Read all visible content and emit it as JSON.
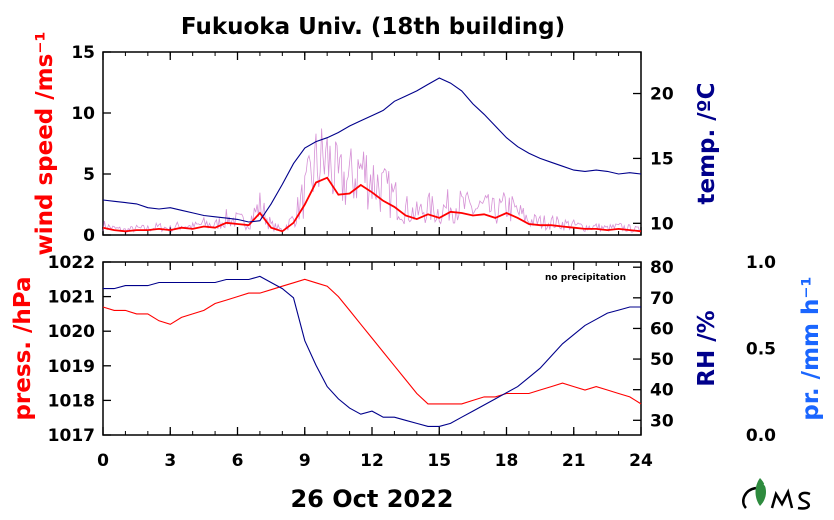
{
  "title": "Fukuoka Univ. (18th building)",
  "date_label": "26 Oct 2022",
  "note": "no precipitation",
  "colors": {
    "wind": "#ff0000",
    "wind_raw": "#cc77cc",
    "temp": "#00008b",
    "press": "#ff0000",
    "rh": "#00008b",
    "precip": "#1a66ff",
    "axis": "#000000"
  },
  "chart_data": [
    {
      "type": "line",
      "panel": "top",
      "xlim": [
        0,
        24
      ],
      "x_ticks": [
        "0",
        "3",
        "6",
        "9",
        "12",
        "15",
        "18",
        "21",
        "24"
      ],
      "left_axis": {
        "label": "wind speed /ms⁻¹",
        "lim": [
          0,
          15
        ],
        "ticks": [
          "0",
          "5",
          "10",
          "15"
        ]
      },
      "right_axis": {
        "label": "temp. /ºC",
        "lim": [
          9.1,
          23.2
        ],
        "ticks": [
          "10",
          "15",
          "20"
        ]
      },
      "series": [
        {
          "axis": "left",
          "x": [
            0,
            0.5,
            1,
            1.5,
            2,
            2.5,
            3,
            3.5,
            4,
            4.5,
            5,
            5.5,
            6,
            6.5,
            7,
            7.5,
            8,
            8.5,
            9,
            9.5,
            10,
            10.5,
            11,
            11.5,
            12,
            12.5,
            13,
            13.5,
            14,
            14.5,
            15,
            15.5,
            16,
            16.5,
            17,
            17.5,
            18,
            18.5,
            19,
            19.5,
            20,
            20.5,
            21,
            21.5,
            22,
            22.5,
            23,
            23.5,
            24
          ],
          "values": [
            0.6,
            0.4,
            0.3,
            0.4,
            0.4,
            0.5,
            0.4,
            0.6,
            0.5,
            0.7,
            0.6,
            1.0,
            0.9,
            0.8,
            1.8,
            0.6,
            0.3,
            1.0,
            2.5,
            4.3,
            4.7,
            3.3,
            3.4,
            4.1,
            3.5,
            2.8,
            2.3,
            1.6,
            1.3,
            1.7,
            1.4,
            1.9,
            1.8,
            1.6,
            1.7,
            1.4,
            1.8,
            1.4,
            0.9,
            0.8,
            0.8,
            0.7,
            0.6,
            0.5,
            0.5,
            0.4,
            0.5,
            0.4,
            0.3
          ]
        },
        {
          "axis": "right",
          "x": [
            0,
            0.5,
            1,
            1.5,
            2,
            2.5,
            3,
            3.5,
            4,
            4.5,
            5,
            5.5,
            6,
            6.5,
            7,
            7.5,
            8,
            8.5,
            9,
            9.5,
            10,
            10.5,
            11,
            11.5,
            12,
            12.5,
            13,
            13.5,
            14,
            14.5,
            15,
            15.5,
            16,
            16.5,
            17,
            17.5,
            18,
            18.5,
            19,
            19.5,
            20,
            20.5,
            21,
            21.5,
            22,
            22.5,
            23,
            23.5,
            24
          ],
          "values": [
            11.8,
            11.7,
            11.6,
            11.5,
            11.2,
            11.1,
            11.2,
            11.0,
            10.8,
            10.6,
            10.5,
            10.4,
            10.3,
            10.1,
            10.2,
            11.5,
            13.0,
            14.6,
            15.8,
            16.3,
            16.6,
            17.0,
            17.5,
            17.9,
            18.3,
            18.7,
            19.4,
            19.8,
            20.2,
            20.7,
            21.2,
            20.8,
            20.2,
            19.2,
            18.4,
            17.5,
            16.6,
            15.9,
            15.4,
            15.0,
            14.7,
            14.4,
            14.1,
            14.0,
            14.1,
            14.0,
            13.8,
            13.9,
            13.8
          ]
        }
      ]
    },
    {
      "type": "line",
      "panel": "bottom",
      "xlim": [
        0,
        24
      ],
      "x_ticks": [
        "0",
        "3",
        "6",
        "9",
        "12",
        "15",
        "18",
        "21",
        "24"
      ],
      "left_axis": {
        "label": "press. /hPa",
        "lim": [
          1017,
          1022
        ],
        "ticks": [
          "1017",
          "1018",
          "1019",
          "1020",
          "1021",
          "1022"
        ]
      },
      "right_axis": {
        "label": "RH /%",
        "lim": [
          25.2,
          81.7
        ],
        "ticks": [
          "30",
          "40",
          "50",
          "60",
          "70",
          "80"
        ]
      },
      "third_axis": {
        "label": "pr. /mm h⁻¹",
        "lim": [
          0,
          1
        ],
        "ticks": [
          "0.0",
          "0.5",
          "1.0"
        ]
      },
      "series": [
        {
          "axis": "left",
          "x": [
            0,
            0.5,
            1,
            1.5,
            2,
            2.5,
            3,
            3.5,
            4,
            4.5,
            5,
            5.5,
            6,
            6.5,
            7,
            7.5,
            8,
            8.5,
            9,
            9.5,
            10,
            10.5,
            11,
            11.5,
            12,
            12.5,
            13,
            13.5,
            14,
            14.5,
            15,
            15.5,
            16,
            16.5,
            17,
            17.5,
            18,
            18.5,
            19,
            19.5,
            20,
            20.5,
            21,
            21.5,
            22,
            22.5,
            23,
            23.5,
            24
          ],
          "values": [
            1020.7,
            1020.6,
            1020.6,
            1020.5,
            1020.5,
            1020.3,
            1020.2,
            1020.4,
            1020.5,
            1020.6,
            1020.8,
            1020.9,
            1021.0,
            1021.1,
            1021.1,
            1021.2,
            1021.3,
            1021.4,
            1021.5,
            1021.4,
            1021.3,
            1021.0,
            1020.6,
            1020.2,
            1019.8,
            1019.4,
            1019.0,
            1018.6,
            1018.2,
            1017.9,
            1017.9,
            1017.9,
            1017.9,
            1018.0,
            1018.1,
            1018.1,
            1018.2,
            1018.2,
            1018.2,
            1018.3,
            1018.4,
            1018.5,
            1018.4,
            1018.3,
            1018.4,
            1018.3,
            1018.2,
            1018.1,
            1017.9
          ]
        },
        {
          "axis": "right",
          "x": [
            0,
            0.5,
            1,
            1.5,
            2,
            2.5,
            3,
            3.5,
            4,
            4.5,
            5,
            5.5,
            6,
            6.5,
            7,
            7.5,
            8,
            8.5,
            9,
            9.5,
            10,
            10.5,
            11,
            11.5,
            12,
            12.5,
            13,
            13.5,
            14,
            14.5,
            15,
            15.5,
            16,
            16.5,
            17,
            17.5,
            18,
            18.5,
            19,
            19.5,
            20,
            20.5,
            21,
            21.5,
            22,
            22.5,
            23,
            23.5,
            24
          ],
          "values": [
            73,
            73,
            74,
            74,
            74,
            75,
            75,
            75,
            75,
            75,
            75,
            76,
            76,
            76,
            77,
            75,
            73,
            70,
            56,
            48,
            41,
            37,
            34,
            32,
            33,
            31,
            31,
            30,
            29,
            28,
            28,
            29,
            31,
            33,
            35,
            37,
            39,
            41,
            44,
            47,
            51,
            55,
            58,
            61,
            63,
            65,
            66,
            67,
            67
          ]
        }
      ]
    }
  ]
}
